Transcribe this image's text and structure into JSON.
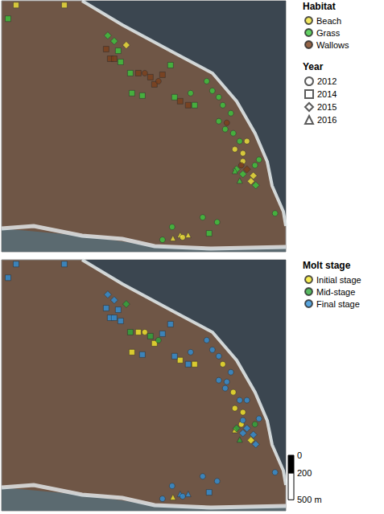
{
  "chart_data": [
    {
      "type": "scatter",
      "xlim": [
        0,
        3180
      ],
      "ylim": [
        0,
        2820
      ],
      "tick_labels": false,
      "legend_title": "Habitat",
      "series": [
        {
          "name": "Beach",
          "color": "#f0e43a",
          "x": [
            162,
            702,
            1395,
            2610,
            2700,
            2745,
            2790,
            2817,
            2700,
            1917,
            1998,
            2088,
            2025
          ],
          "y": [
            2772,
            2772,
            2322,
            1152,
            1107,
            1242,
            792,
            855,
            1017,
            153,
            189,
            189,
            162
          ],
          "year": [
            "2014",
            "2014",
            "2015",
            "2012",
            "2012",
            "2012",
            "2015",
            "2015",
            "2012",
            "2016",
            "2016",
            "2016",
            "2012"
          ]
        },
        {
          "name": "Grass",
          "color": "#3cc63c",
          "x": [
            72,
            1188,
            1260,
            1305,
            1332,
            1458,
            1575,
            1440,
            1890,
            1935,
            2160,
            2115,
            2295,
            2358,
            2430,
            2475,
            2565,
            2430,
            2502,
            2592,
            2664,
            2835,
            2880,
            3060,
            1908,
            2250,
            2412,
            1800,
            2628,
            2700,
            2844,
            2610,
            2664,
            2322
          ],
          "y": [
            2619,
            2430,
            2367,
            2259,
            2133,
            1782,
            1755,
            2007,
            2097,
            1737,
            1647,
            1782,
            1917,
            1809,
            1737,
            1647,
            1557,
            1467,
            1377,
            1332,
            1242,
            972,
            1035,
            432,
            279,
            387,
            333,
            135,
            927,
            873,
            747,
            909,
            801,
            207
          ],
          "year": [
            "2014",
            "2015",
            "2015",
            "2014",
            "2014",
            "2014",
            "2014",
            "2014",
            "2014",
            "2014",
            "2014",
            "2012",
            "2012",
            "2012",
            "2012",
            "2012",
            "2012",
            "2012",
            "2012",
            "2012",
            "2012",
            "2012",
            "2012",
            "2012",
            "2012",
            "2012",
            "2012",
            "2012",
            "2015",
            "2015",
            "2015",
            "2016",
            "2016",
            "2014"
          ]
        },
        {
          "name": "Wallows",
          "color": "#7a3f1a",
          "x": [
            1170,
            1215,
            1260,
            1530,
            1665,
            1710,
            1800,
            1998,
            2088,
            1602,
            1755,
            2520,
            2682,
            2745
          ],
          "y": [
            2277,
            2169,
            2169,
            2007,
            1962,
            1881,
            1989,
            1692,
            1647,
            2007,
            1917,
            1449,
            972,
            927
          ],
          "year": [
            "2014",
            "2014",
            "2014",
            "2014",
            "2014",
            "2014",
            "2014",
            "2014",
            "2014",
            "2012",
            "2012",
            "2012",
            "2012",
            "2015"
          ]
        }
      ],
      "marker_legend": {
        "title": "Year",
        "items": [
          {
            "name": "2012",
            "marker": "circle"
          },
          {
            "name": "2014",
            "marker": "square"
          },
          {
            "name": "2015",
            "marker": "diamond"
          },
          {
            "name": "2016",
            "marker": "triangle"
          }
        ]
      }
    },
    {
      "type": "scatter",
      "xlim": [
        0,
        3180
      ],
      "ylim": [
        0,
        2820
      ],
      "tick_labels": false,
      "legend_title": "Molt stage",
      "series": [
        {
          "name": "Initial stage",
          "color": "#f5e82a",
          "x": [
            2610,
            2700,
            2790,
            1917,
            1458,
            2160,
            2475,
            2592,
            2610,
            1530,
            1710,
            1998,
            1602,
            2682
          ],
          "y": [
            1152,
            1107,
            792,
            153,
            1782,
            1647,
            1647,
            1332,
            909,
            2007,
            1881,
            1692,
            2007,
            972
          ],
          "year": [
            "2012",
            "2012",
            "2015",
            "2016",
            "2014",
            "2014",
            "2012",
            "2012",
            "2016",
            "2014",
            "2014",
            "2014",
            "2012",
            "2012"
          ]
        },
        {
          "name": "Mid-stage",
          "color": "#2ea83a",
          "x": [
            1395,
            1440,
            2835,
            2628,
            2664,
            1665,
            1755
          ],
          "y": [
            2322,
            2007,
            972,
            927,
            801,
            1962,
            1917
          ],
          "year": [
            "2015",
            "2014",
            "2012",
            "2015",
            "2016",
            "2014",
            "2012"
          ]
        },
        {
          "name": "Final stage",
          "color": "#2f8fd6",
          "x": [
            162,
            702,
            2745,
            2817,
            2700,
            1998,
            2088,
            2025,
            72,
            1188,
            1260,
            1305,
            1332,
            1575,
            1890,
            1935,
            2115,
            2295,
            2358,
            2430,
            2565,
            2430,
            2502,
            2664,
            2880,
            3060,
            1908,
            2250,
            2412,
            1800,
            2700,
            2844,
            2322,
            1170,
            1215,
            1260,
            1800,
            2088,
            2520,
            2745
          ],
          "y": [
            2772,
            2772,
            1242,
            855,
            1017,
            189,
            189,
            162,
            2619,
            2430,
            2367,
            2259,
            2133,
            1755,
            2097,
            1737,
            1782,
            1917,
            1809,
            1737,
            1557,
            1467,
            1377,
            1242,
            1035,
            432,
            279,
            387,
            333,
            135,
            873,
            747,
            207,
            2277,
            2169,
            2169,
            1989,
            1647,
            1449,
            927
          ],
          "year": [
            "2014",
            "2014",
            "2012",
            "2015",
            "2012",
            "2016",
            "2016",
            "2012",
            "2014",
            "2015",
            "2015",
            "2014",
            "2014",
            "2014",
            "2014",
            "2014",
            "2012",
            "2012",
            "2012",
            "2012",
            "2012",
            "2012",
            "2012",
            "2012",
            "2012",
            "2012",
            "2012",
            "2012",
            "2012",
            "2012",
            "2015",
            "2015",
            "2014",
            "2014",
            "2014",
            "2014",
            "2014",
            "2014",
            "2012",
            "2015"
          ]
        }
      ],
      "scale_bar": {
        "ticks": [
          0,
          200,
          {
            "value": 500,
            "label": "500 m"
          }
        ]
      }
    }
  ]
}
